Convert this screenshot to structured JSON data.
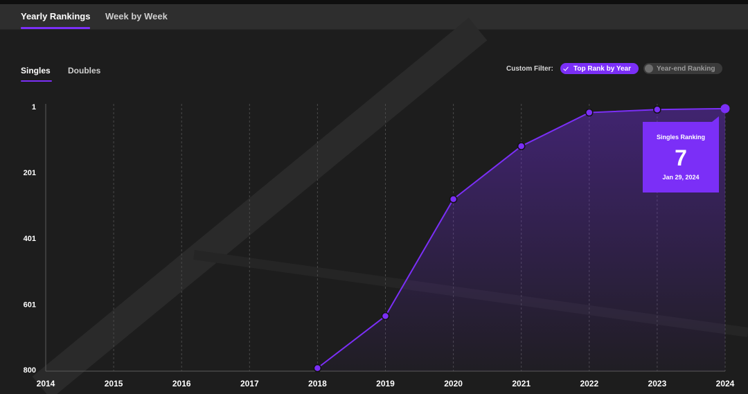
{
  "tabs": [
    {
      "label": "Yearly Rankings",
      "active": true
    },
    {
      "label": "Week by Week",
      "active": false
    }
  ],
  "subtabs": [
    {
      "label": "Singles",
      "active": true
    },
    {
      "label": "Doubles",
      "active": false
    }
  ],
  "filter": {
    "label": "Custom Filter:",
    "options": [
      {
        "label": "Top Rank by Year",
        "active": true
      },
      {
        "label": "Year-end Ranking",
        "active": false
      }
    ]
  },
  "tooltip": {
    "title": "Singles Ranking",
    "value": "7",
    "date": "Jan 29, 2024"
  },
  "colors": {
    "accent": "#7b2ff7",
    "background": "#1d1d1d",
    "tabbar": "#2e2e2e"
  },
  "chart_data": {
    "type": "line",
    "x": [
      2018,
      2019,
      2020,
      2021,
      2022,
      2023,
      2024
    ],
    "series": [
      {
        "values": [
          795,
          637,
          282,
          121,
          19,
          10,
          7
        ]
      }
    ],
    "xticks": [
      "2014",
      "2015",
      "2016",
      "2017",
      "2018",
      "2019",
      "2020",
      "2021",
      "2022",
      "2023",
      "2024"
    ],
    "yticks": [
      "1",
      "201",
      "401",
      "601",
      "800"
    ],
    "ylim": [
      800,
      1
    ],
    "xlim": [
      2014,
      2024
    ],
    "y_inverted": true,
    "grid": "vertical dashed",
    "fill": "area under line"
  }
}
